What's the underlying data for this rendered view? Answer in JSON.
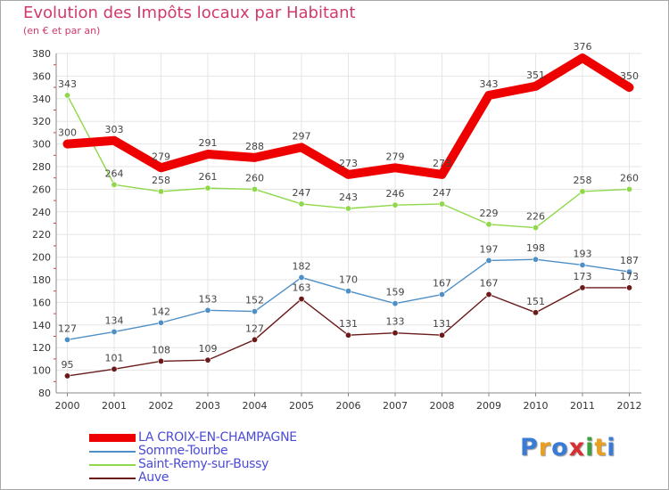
{
  "header": {
    "title": "Evolution des Impôts locaux par Habitant",
    "subtitle": "(en € et par an)"
  },
  "logo": {
    "text": "Proxiti",
    "colors": [
      "#3a7bd5",
      "#e8a020",
      "#3a7bd5",
      "#d83030",
      "#3aa040",
      "#e8a020",
      "#3a7bd5"
    ]
  },
  "chart_data": {
    "type": "line",
    "title": "Evolution des Impôts locaux par Habitant",
    "subtitle": "(en € et par an)",
    "xlabel": "",
    "ylabel": "",
    "ylim": [
      80,
      380
    ],
    "yticks": [
      80,
      100,
      120,
      140,
      160,
      180,
      200,
      220,
      240,
      260,
      280,
      300,
      320,
      340,
      360,
      380
    ],
    "grid": true,
    "legend_position": "bottom-left",
    "categories": [
      "2000",
      "2001",
      "2002",
      "2003",
      "2004",
      "2005",
      "2006",
      "2007",
      "2008",
      "2009",
      "2010",
      "2011",
      "2012"
    ],
    "series": [
      {
        "name": "LA CROIX-EN-CHAMPAGNE",
        "color": "#ee0000",
        "values": [
          300,
          303,
          279,
          291,
          288,
          297,
          273,
          279,
          273,
          343,
          351,
          376,
          350
        ],
        "labels": [
          "300",
          "303",
          "279",
          "291",
          "288",
          "297",
          "273",
          "279",
          "273",
          "343",
          "351",
          "376",
          "350"
        ]
      },
      {
        "name": "Somme-Tourbe",
        "color": "#4e8fc6",
        "values": [
          127,
          134,
          142,
          153,
          152,
          182,
          170,
          159,
          167,
          197,
          198,
          193,
          187
        ],
        "labels": [
          "127",
          "134",
          "142",
          "153",
          "152",
          "182",
          "170",
          "159",
          "167",
          "197",
          "198",
          "193",
          "187"
        ]
      },
      {
        "name": "Saint-Remy-sur-Bussy",
        "color": "#8ed84a",
        "values": [
          343,
          264,
          258,
          261,
          260,
          247,
          243,
          246,
          247,
          229,
          226,
          258,
          260
        ],
        "labels": [
          "343",
          "264",
          "258",
          "261",
          "260",
          "247",
          "243",
          "246",
          "247",
          "229",
          "226",
          "258",
          "260"
        ]
      },
      {
        "name": "Auve",
        "color": "#6b1a1a",
        "values": [
          95,
          101,
          108,
          109,
          127,
          163,
          131,
          133,
          131,
          167,
          151,
          173,
          173
        ],
        "labels": [
          "95",
          "101",
          "108",
          "109",
          "127",
          "163",
          "131",
          "133",
          "131",
          "167",
          "151",
          "173",
          "173"
        ]
      }
    ]
  }
}
